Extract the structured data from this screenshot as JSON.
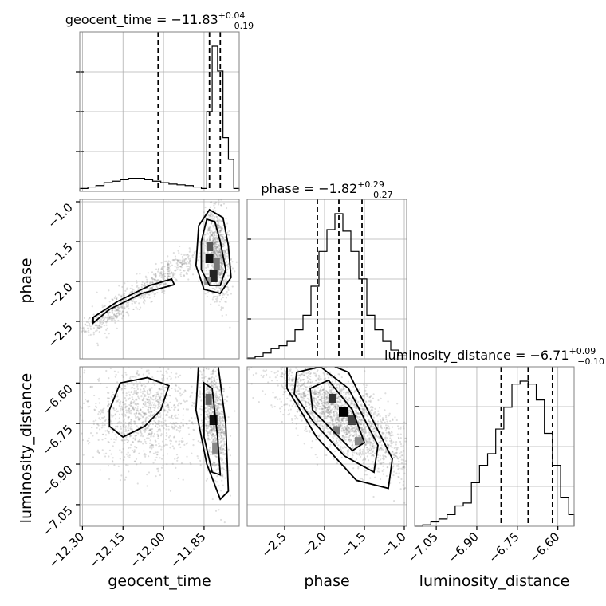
{
  "chart_data": {
    "type": "corner",
    "parameters": [
      {
        "name": "geocent_time",
        "axis_label": "geocent_time",
        "title_prefix": "geocent_time = −11.83",
        "title_sup": "+0.04",
        "title_sub": "−0.19",
        "median": -11.83,
        "q16": -12.02,
        "q84": -11.79,
        "range": [
          -12.31,
          -11.72
        ],
        "ticks": [
          -12.3,
          -12.15,
          -12.0,
          -11.85
        ],
        "tick_labels": [
          "−12.30",
          "−12.15",
          "−12.00",
          "−11.85"
        ],
        "hist_edges": [
          -12.31,
          -12.28,
          -12.25,
          -12.22,
          -12.19,
          -12.16,
          -12.13,
          -12.1,
          -12.07,
          -12.04,
          -12.01,
          -11.98,
          -11.95,
          -11.92,
          -11.89,
          -11.86,
          -11.84,
          -11.82,
          -11.8,
          -11.78,
          -11.76,
          -11.74,
          -11.72
        ],
        "hist_values": [
          0.02,
          0.03,
          0.04,
          0.06,
          0.07,
          0.08,
          0.09,
          0.09,
          0.08,
          0.07,
          0.06,
          0.05,
          0.045,
          0.04,
          0.03,
          0.02,
          0.55,
          1.0,
          0.83,
          0.37,
          0.22,
          0.02
        ]
      },
      {
        "name": "phase",
        "axis_label": "phase",
        "title_prefix": "phase = −1.82",
        "title_sup": "+0.29",
        "title_sub": "−0.27",
        "median": -1.82,
        "q16": -2.09,
        "q84": -1.53,
        "range": [
          -2.97,
          -0.97
        ],
        "ticks": [
          -2.5,
          -2.0,
          -1.5,
          -1.0
        ],
        "tick_labels": [
          "−2.5",
          "−2.0",
          "−1.5",
          "−1.0"
        ],
        "hist_edges": [
          -2.97,
          -2.87,
          -2.77,
          -2.67,
          -2.57,
          -2.47,
          -2.37,
          -2.27,
          -2.17,
          -2.07,
          -1.97,
          -1.87,
          -1.77,
          -1.67,
          -1.57,
          -1.47,
          -1.37,
          -1.27,
          -1.17,
          -1.07,
          -0.97
        ],
        "hist_values": [
          0.005,
          0.015,
          0.04,
          0.07,
          0.09,
          0.12,
          0.2,
          0.3,
          0.5,
          0.74,
          0.89,
          1.0,
          0.88,
          0.74,
          0.55,
          0.3,
          0.2,
          0.12,
          0.06,
          0.02
        ]
      },
      {
        "name": "luminosity_distance",
        "axis_label": "luminosity_distance",
        "title_prefix": "luminosity_distance = −6.71",
        "title_sup": "+0.09",
        "title_sub": "−0.10",
        "median": -6.71,
        "q16": -6.81,
        "q84": -6.62,
        "range": [
          -7.13,
          -6.54
        ],
        "ticks": [
          -7.05,
          -6.9,
          -6.75,
          -6.6
        ],
        "tick_labels": [
          "−7.05",
          "−6.90",
          "−6.75",
          "−6.60"
        ],
        "hist_edges": [
          -7.13,
          -7.1,
          -7.07,
          -7.04,
          -7.01,
          -6.98,
          -6.95,
          -6.92,
          -6.89,
          -6.86,
          -6.83,
          -6.8,
          -6.77,
          -6.74,
          -6.71,
          -6.68,
          -6.65,
          -6.62,
          -6.59,
          -6.56,
          -6.54
        ],
        "hist_values": [
          0.0,
          0.01,
          0.03,
          0.05,
          0.08,
          0.14,
          0.16,
          0.3,
          0.42,
          0.5,
          0.67,
          0.82,
          0.98,
          1.0,
          0.98,
          0.87,
          0.64,
          0.42,
          0.2,
          0.08
        ]
      }
    ],
    "grid": true,
    "x_tick_rotation": 45
  }
}
